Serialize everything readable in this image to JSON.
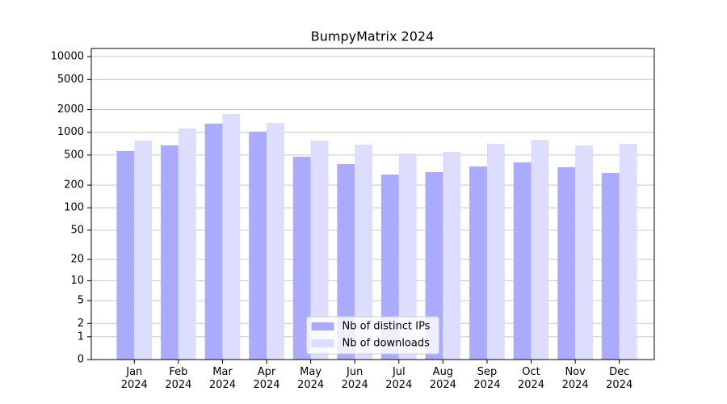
{
  "chart_data": {
    "type": "bar",
    "title": "BumpyMatrix 2024",
    "scale": "log1p",
    "categories": [
      "Jan 2024",
      "Feb 2024",
      "Mar 2024",
      "Apr 2024",
      "May 2024",
      "Jun 2024",
      "Jul 2024",
      "Aug 2024",
      "Sep 2024",
      "Oct 2024",
      "Nov 2024",
      "Dec 2024"
    ],
    "series": [
      {
        "name": "Nb of distinct IPs",
        "color": "#aaaaff",
        "values": [
          565,
          671,
          1302,
          1018,
          475,
          381,
          276,
          298,
          353,
          400,
          345,
          290
        ]
      },
      {
        "name": "Nb of downloads",
        "color": "#ddddff",
        "values": [
          778,
          1124,
          1748,
          1334,
          778,
          687,
          524,
          550,
          704,
          795,
          670,
          704
        ]
      }
    ],
    "ylim": [
      0,
      12800
    ],
    "yticks": [
      0,
      1,
      2,
      5,
      10,
      20,
      50,
      100,
      200,
      500,
      1000,
      2000,
      5000,
      10000
    ],
    "grid": true,
    "legend": "lower center"
  }
}
